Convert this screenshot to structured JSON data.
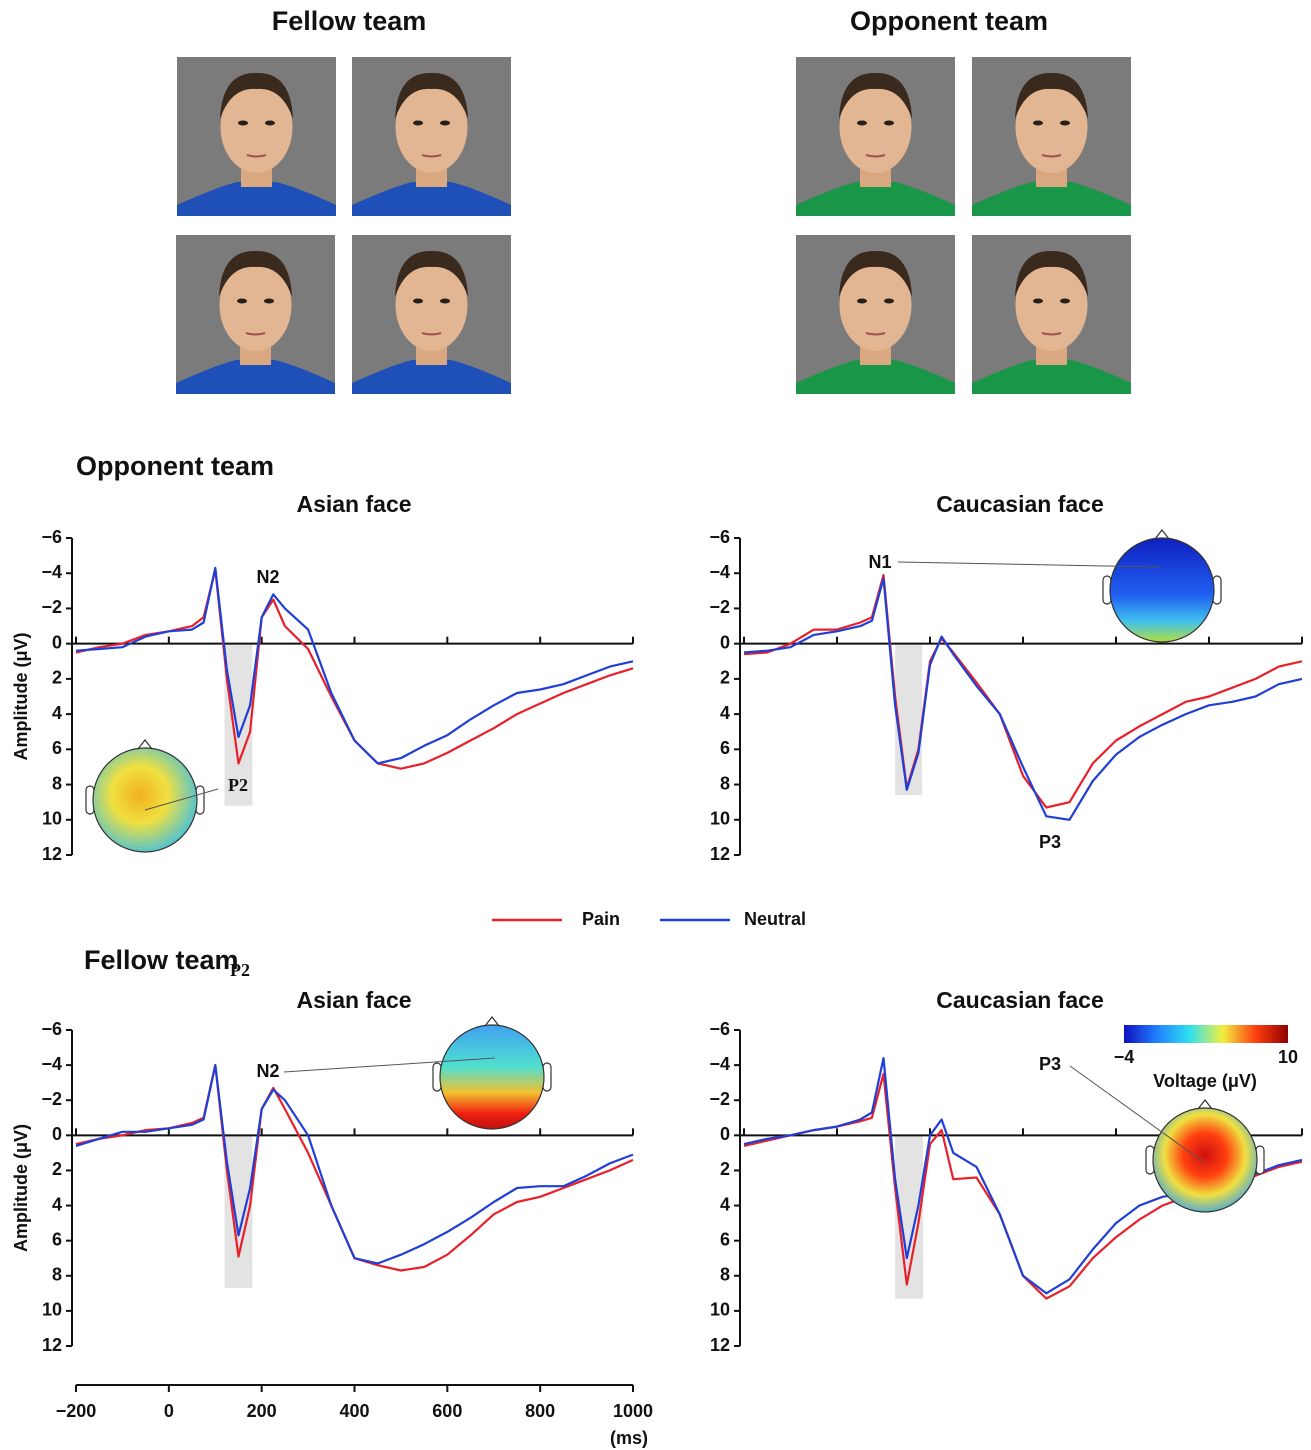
{
  "photos": {
    "titles": [
      "Fellow team",
      "Opponent team"
    ]
  },
  "sections": [
    "Opponent team",
    "Fellow team"
  ],
  "colorbar": {
    "ticks": [
      "−4",
      "10"
    ],
    "label": "Voltage (μV)"
  },
  "chart_data": [
    {
      "type": "line",
      "title": "Asian face",
      "ylabel": "Amplitude (μV)",
      "x": [
        -200,
        -150,
        -100,
        -50,
        0,
        50,
        75,
        100,
        125,
        150,
        175,
        200,
        225,
        250,
        300,
        350,
        400,
        450,
        500,
        550,
        600,
        650,
        700,
        750,
        800,
        850,
        900,
        950,
        1000
      ],
      "xlim": [
        -200,
        1000
      ],
      "ylim": [
        12,
        -6
      ],
      "yticks": [
        {
          "value": -6,
          "label": "−6"
        },
        {
          "value": -4,
          "label": "−4"
        },
        {
          "value": -2,
          "label": "−2"
        },
        0,
        2,
        4,
        6,
        8,
        10,
        12
      ],
      "highlight": {
        "x": [
          120,
          180
        ],
        "y": [
          0,
          9.2
        ]
      },
      "annotations": [
        "N2",
        "P2"
      ],
      "series": [
        {
          "name": "Pain",
          "color": "#e8202a",
          "values": [
            0.5,
            0.2,
            0,
            -0.5,
            -0.7,
            -1,
            -1.5,
            -4.2,
            2,
            6.8,
            5,
            -1.5,
            -2.5,
            -1,
            0.3,
            3,
            5.5,
            6.8,
            7.1,
            6.8,
            6.2,
            5.5,
            4.8,
            4,
            3.4,
            2.8,
            2.3,
            1.8,
            1.4
          ]
        },
        {
          "name": "Neutral",
          "color": "#1f3fd6",
          "values": [
            0.4,
            0.3,
            0.2,
            -0.4,
            -0.7,
            -0.8,
            -1.2,
            -4.3,
            1.5,
            5.3,
            3.5,
            -1.5,
            -2.8,
            -2,
            -0.8,
            2.8,
            5.5,
            6.8,
            6.5,
            5.8,
            5.2,
            4.3,
            3.5,
            2.8,
            2.6,
            2.3,
            1.8,
            1.3,
            1
          ]
        }
      ]
    },
    {
      "type": "line",
      "title": "Caucasian face",
      "x": [
        -200,
        -150,
        -100,
        -50,
        0,
        50,
        75,
        100,
        125,
        150,
        175,
        200,
        225,
        250,
        300,
        350,
        400,
        450,
        500,
        550,
        600,
        650,
        700,
        750,
        800,
        850,
        900,
        950,
        1000
      ],
      "xlim": [
        -200,
        1000
      ],
      "ylim": [
        12,
        -6
      ],
      "yticks": [
        {
          "value": -6,
          "label": "−6"
        },
        {
          "value": -4,
          "label": "−4"
        },
        {
          "value": -2,
          "label": "−2"
        },
        0,
        2,
        4,
        6,
        8,
        10,
        12
      ],
      "highlight": {
        "x": [
          125,
          183
        ],
        "y": [
          0,
          8.6
        ]
      },
      "annotations": [
        "N1",
        "P3"
      ],
      "series": [
        {
          "name": "Pain",
          "color": "#e8202a",
          "values": [
            0.6,
            0.5,
            0,
            -0.8,
            -0.8,
            -1.2,
            -1.5,
            -3.9,
            3,
            8.2,
            6,
            1,
            -0.3,
            0.5,
            2.2,
            4,
            7.5,
            9.3,
            9,
            6.8,
            5.5,
            4.7,
            4,
            3.3,
            3,
            2.5,
            2,
            1.3,
            1
          ]
        },
        {
          "name": "Neutral",
          "color": "#1f3fd6",
          "values": [
            0.5,
            0.4,
            0.2,
            -0.5,
            -0.7,
            -1,
            -1.3,
            -3.7,
            3.5,
            8.3,
            6.2,
            1.2,
            -0.4,
            0.6,
            2.4,
            4,
            7,
            9.8,
            10,
            7.8,
            6.3,
            5.3,
            4.6,
            4,
            3.5,
            3.3,
            3,
            2.3,
            2
          ]
        }
      ]
    },
    {
      "type": "line",
      "title": "Asian face",
      "ylabel": "Amplitude (μV)",
      "xlabel": "(ms)",
      "x": [
        -200,
        -150,
        -100,
        -50,
        0,
        50,
        75,
        100,
        125,
        150,
        175,
        200,
        225,
        250,
        300,
        350,
        400,
        450,
        500,
        550,
        600,
        650,
        700,
        750,
        800,
        850,
        900,
        950,
        1000
      ],
      "xlim": [
        -200,
        1000
      ],
      "ylim": [
        12,
        -6
      ],
      "xticks": [
        {
          "value": -200,
          "label": "−200"
        },
        0,
        200,
        400,
        600,
        800,
        1000
      ],
      "yticks": [
        {
          "value": -6,
          "label": "−6"
        },
        {
          "value": -4,
          "label": "−4"
        },
        {
          "value": -2,
          "label": "−2"
        },
        0,
        2,
        4,
        6,
        8,
        10,
        12
      ],
      "highlight": {
        "x": [
          120,
          180
        ],
        "y": [
          0,
          8.7
        ]
      },
      "annotations": [
        "N2",
        "P2"
      ],
      "series": [
        {
          "name": "Pain",
          "color": "#e8202a",
          "values": [
            0.5,
            0.2,
            0,
            -0.3,
            -0.4,
            -0.7,
            -1,
            -4,
            2,
            6.9,
            4,
            -1.5,
            -2.7,
            -1.5,
            1,
            4,
            7,
            7.4,
            7.7,
            7.5,
            6.8,
            5.7,
            4.5,
            3.8,
            3.5,
            3,
            2.5,
            2,
            1.4
          ]
        },
        {
          "name": "Neutral",
          "color": "#1f3fd6",
          "values": [
            0.6,
            0.2,
            -0.2,
            -0.2,
            -0.4,
            -0.6,
            -0.9,
            -4,
            1.5,
            5.7,
            3,
            -1.5,
            -2.6,
            -2,
            0,
            4,
            7,
            7.3,
            6.8,
            6.2,
            5.5,
            4.7,
            3.8,
            3,
            2.9,
            2.9,
            2.3,
            1.6,
            1.1
          ]
        }
      ]
    },
    {
      "type": "line",
      "title": "Caucasian face",
      "x": [
        -200,
        -150,
        -100,
        -50,
        0,
        50,
        75,
        100,
        125,
        150,
        175,
        200,
        225,
        250,
        300,
        350,
        400,
        450,
        500,
        550,
        600,
        650,
        700,
        750,
        800,
        850,
        900,
        950,
        1000
      ],
      "xlim": [
        -200,
        1000
      ],
      "ylim": [
        12,
        -6
      ],
      "yticks": [
        {
          "value": -6,
          "label": "−6"
        },
        {
          "value": -4,
          "label": "−4"
        },
        {
          "value": -2,
          "label": "−2"
        },
        0,
        2,
        4,
        6,
        8,
        10,
        12
      ],
      "highlight": {
        "x": [
          125,
          185
        ],
        "y": [
          0,
          9.3
        ]
      },
      "annotations": [
        "P3"
      ],
      "series": [
        {
          "name": "Pain",
          "color": "#e8202a",
          "values": [
            0.6,
            0.3,
            0,
            -0.3,
            -0.5,
            -0.8,
            -1,
            -3.5,
            3,
            8.5,
            5,
            0.5,
            -0.3,
            2.5,
            2.4,
            4.5,
            8,
            9.3,
            8.6,
            7,
            5.8,
            4.8,
            4,
            3.5,
            3.3,
            2.8,
            2.3,
            1.8,
            1.5
          ]
        },
        {
          "name": "Neutral",
          "color": "#1f3fd6",
          "values": [
            0.5,
            0.2,
            0,
            -0.3,
            -0.5,
            -0.9,
            -1.3,
            -4.4,
            2.5,
            7,
            4,
            0,
            -0.9,
            1,
            1.8,
            4.5,
            8,
            9,
            8.2,
            6.5,
            5,
            4,
            3.5,
            3.3,
            3,
            2.5,
            2.2,
            1.7,
            1.4
          ]
        }
      ]
    }
  ]
}
